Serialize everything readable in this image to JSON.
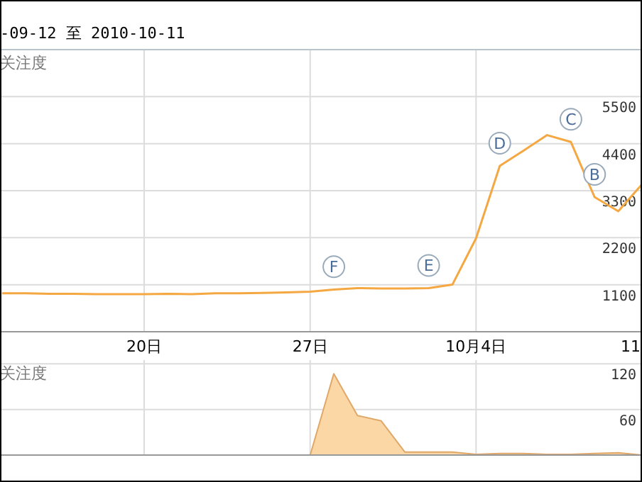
{
  "chart_data": [
    {
      "type": "line",
      "title": "-09-12 至 2010-10-11",
      "ylabel": "关注度",
      "x": [
        "2010-09-14",
        "2010-09-15",
        "2010-09-16",
        "2010-09-17",
        "2010-09-18",
        "2010-09-19",
        "2010-09-20",
        "2010-09-21",
        "2010-09-22",
        "2010-09-23",
        "2010-09-24",
        "2010-09-25",
        "2010-09-26",
        "2010-09-27",
        "2010-09-28",
        "2010-09-29",
        "2010-09-30",
        "2010-10-01",
        "2010-10-02",
        "2010-10-03",
        "2010-10-04",
        "2010-10-05",
        "2010-10-06",
        "2010-10-07",
        "2010-10-08",
        "2010-10-09",
        "2010-10-10",
        "2010-10-11"
      ],
      "series": [
        {
          "color": "#f5a742",
          "values": [
            900,
            900,
            890,
            890,
            880,
            880,
            880,
            890,
            880,
            900,
            900,
            910,
            920,
            940,
            990,
            1020,
            1010,
            1010,
            1020,
            1100,
            2190,
            3880,
            4240,
            4600,
            4440,
            3150,
            2820,
            3450
          ]
        }
      ],
      "xlim": [
        "2010-09-13T22:00",
        "2010-10-11"
      ],
      "xticks": [
        {
          "value": "2010-09-20",
          "label": "20日"
        },
        {
          "value": "2010-09-27",
          "label": "27日"
        },
        {
          "value": "2010-10-04",
          "label": "10月4日"
        },
        {
          "value": "2010-10-11",
          "label": "11"
        }
      ],
      "ylim": [
        0,
        6600
      ],
      "yticks": [
        1100,
        2200,
        3300,
        4400,
        5500
      ],
      "grid": true,
      "annotations": [
        {
          "text": "F",
          "x": "2010-09-28",
          "y": 990
        },
        {
          "text": "E",
          "x": "2010-10-02",
          "y": 1020
        },
        {
          "text": "D",
          "x": "2010-10-05",
          "y": 3880
        },
        {
          "text": "C",
          "x": "2010-10-08",
          "y": 4440
        },
        {
          "text": "B",
          "x": "2010-10-09",
          "y": 3150
        }
      ]
    },
    {
      "type": "area",
      "ylabel": "关注度",
      "x": [
        "2010-09-14",
        "2010-09-15",
        "2010-09-16",
        "2010-09-17",
        "2010-09-18",
        "2010-09-19",
        "2010-09-20",
        "2010-09-21",
        "2010-09-22",
        "2010-09-23",
        "2010-09-24",
        "2010-09-25",
        "2010-09-26",
        "2010-09-27",
        "2010-09-28",
        "2010-09-29",
        "2010-09-30",
        "2010-10-01",
        "2010-10-02",
        "2010-10-03",
        "2010-10-04",
        "2010-10-05",
        "2010-10-06",
        "2010-10-07",
        "2010-10-08",
        "2010-10-09",
        "2010-10-10",
        "2010-10-11"
      ],
      "series": [
        {
          "color": "#fcd7a6",
          "values": [
            0,
            0,
            0,
            0,
            0,
            0,
            0,
            0,
            0,
            0,
            0,
            0,
            0,
            0,
            107,
            52,
            45,
            4,
            4,
            4,
            1,
            2,
            2,
            1,
            1,
            2,
            3,
            0
          ]
        }
      ],
      "xlim": [
        "2010-09-13T22:00",
        "2010-10-11"
      ],
      "xticks": [
        {
          "value": "2010-09-20",
          "label": null
        },
        {
          "value": "2010-09-27",
          "label": null
        },
        {
          "value": "2010-10-04",
          "label": null
        },
        {
          "value": "2010-10-11",
          "label": null
        }
      ],
      "ylim": [
        0,
        125
      ],
      "yticks": [
        60,
        120
      ],
      "grid": true,
      "tick_labels": "y"
    }
  ]
}
